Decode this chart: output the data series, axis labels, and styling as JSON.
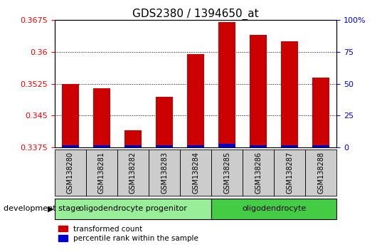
{
  "title": "GDS2380 / 1394650_at",
  "samples": [
    "GSM138280",
    "GSM138281",
    "GSM138282",
    "GSM138283",
    "GSM138284",
    "GSM138285",
    "GSM138286",
    "GSM138287",
    "GSM138288"
  ],
  "transformed_count": [
    0.3525,
    0.3515,
    0.3415,
    0.3495,
    0.3595,
    0.367,
    0.364,
    0.3625,
    0.354
  ],
  "percentile_rank": [
    2,
    2,
    2,
    2,
    2,
    3,
    2,
    2,
    2
  ],
  "ylim_left": [
    0.3375,
    0.3675
  ],
  "ylim_right": [
    0,
    100
  ],
  "yticks_left": [
    0.3375,
    0.345,
    0.3525,
    0.36,
    0.3675
  ],
  "yticks_right": [
    0,
    25,
    50,
    75,
    100
  ],
  "bar_color_red": "#cc0000",
  "bar_color_blue": "#0000cc",
  "groups": [
    {
      "label": "oligodendrocyte progenitor",
      "start": 0,
      "end": 5,
      "color": "#99ee99"
    },
    {
      "label": "oligodendrocyte",
      "start": 5,
      "end": 9,
      "color": "#44cc44"
    }
  ],
  "group_panel_color": "#cccccc",
  "legend_red_label": "transformed count",
  "legend_blue_label": "percentile rank within the sample",
  "dev_stage_label": "development stage",
  "background_color": "#ffffff"
}
